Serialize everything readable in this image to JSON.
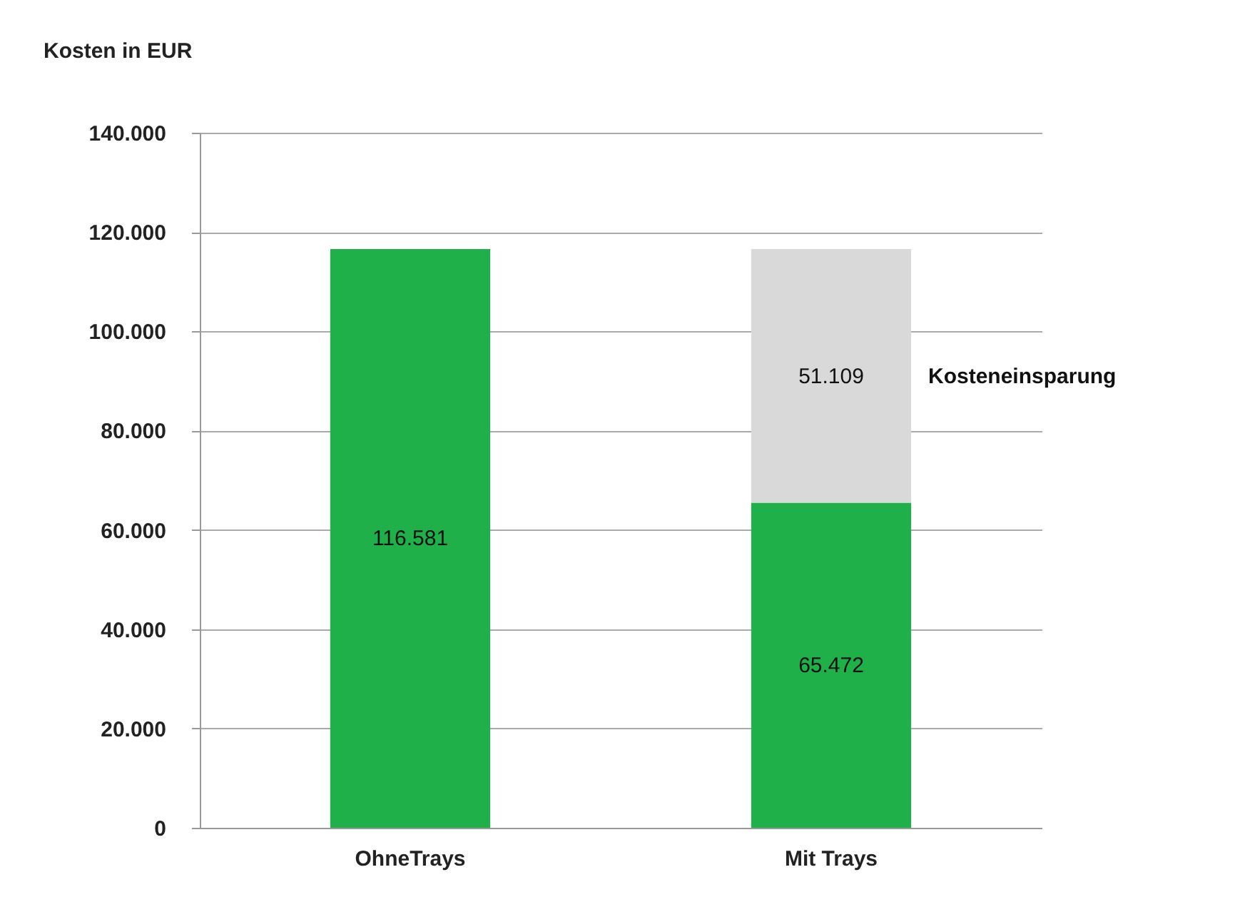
{
  "chart_data": {
    "type": "bar",
    "stacked": true,
    "ylabel": "Kosten in EUR",
    "categories": [
      "OhneTrays",
      "Mit Trays"
    ],
    "series": [
      {
        "color": "#1fb04a",
        "values": [
          116581,
          65472
        ],
        "value_labels": [
          "116.581",
          "65.472"
        ]
      },
      {
        "name": "Kosteneinsparung",
        "color": "#d9d9d9",
        "values": [
          null,
          51109
        ],
        "value_labels": [
          null,
          "51.109"
        ]
      }
    ],
    "ylim": [
      0,
      140000
    ],
    "yticks": [
      {
        "value": 0,
        "label": "0"
      },
      {
        "value": 20000,
        "label": "20.000"
      },
      {
        "value": 40000,
        "label": "40.000"
      },
      {
        "value": 60000,
        "label": "60.000"
      },
      {
        "value": 80000,
        "label": "80.000"
      },
      {
        "value": 100000,
        "label": "100.000"
      },
      {
        "value": 120000,
        "label": "120.000"
      },
      {
        "value": 140000,
        "label": "140.000"
      }
    ],
    "grid": "y",
    "legend": false
  }
}
